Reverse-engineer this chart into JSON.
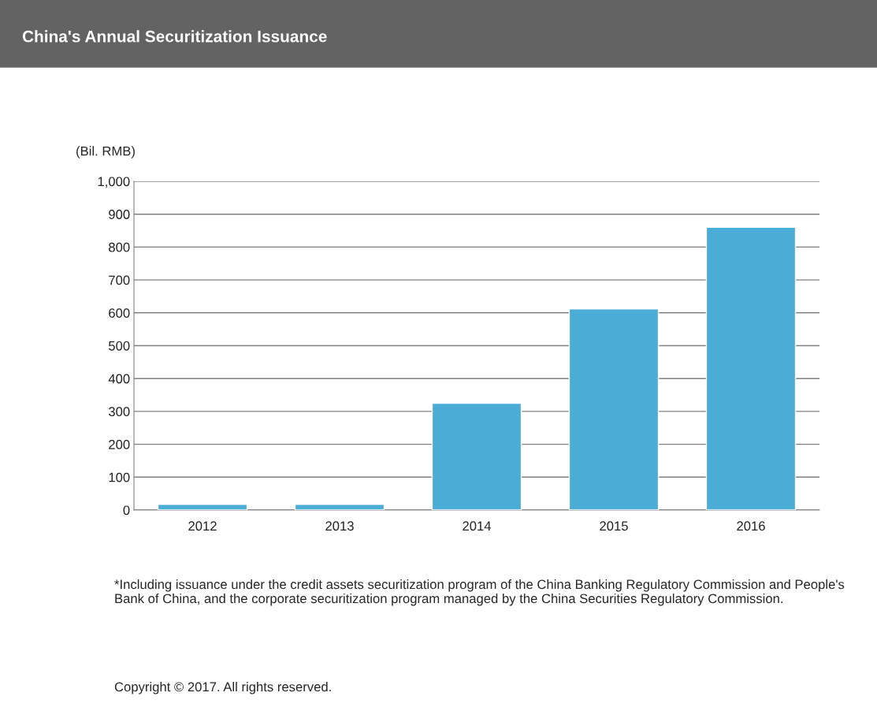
{
  "chart_data": {
    "type": "bar",
    "title": "China's Annual Securitization Issuance",
    "ylabel": "(Bil. RMB)",
    "categories": [
      "2012",
      "2013",
      "2014",
      "2015",
      "2016"
    ],
    "values": [
      17,
      17,
      325,
      612,
      860
    ],
    "color": "#4bacd6",
    "ylim": [
      0,
      1000
    ],
    "yticks": [
      0,
      100,
      200,
      300,
      400,
      500,
      600,
      700,
      800,
      900,
      {
        "value": 1000,
        "label": "1,000"
      }
    ],
    "grid": "y",
    "annotations": [
      "*Including issuance under the credit assets securitization program of the China Banking Regulatory Commission and People's Bank of China, and the corporate securitization program managed by the China Securities Regulatory Commission.",
      "Copyright © 2017. All rights reserved."
    ]
  }
}
